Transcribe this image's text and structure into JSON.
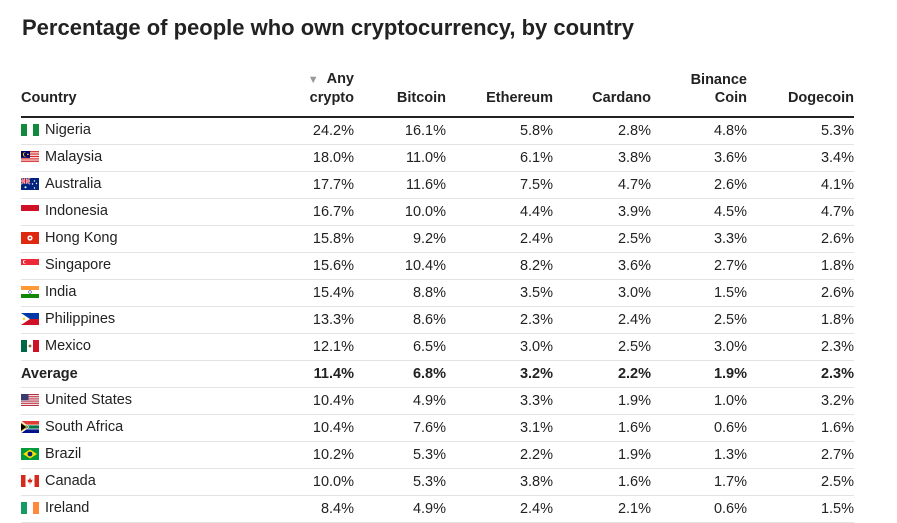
{
  "chart_data": {
    "type": "table",
    "title": "Percentage of people who own cryptocurrency, by country",
    "sort_indicator": "▼",
    "columns": [
      {
        "key": "country",
        "label": [
          "Country"
        ]
      },
      {
        "key": "any",
        "label": [
          "Any",
          "crypto"
        ]
      },
      {
        "key": "bitcoin",
        "label": [
          "Bitcoin"
        ]
      },
      {
        "key": "ethereum",
        "label": [
          "Ethereum"
        ]
      },
      {
        "key": "cardano",
        "label": [
          "Cardano"
        ]
      },
      {
        "key": "binance",
        "label": [
          "Binance",
          "Coin"
        ]
      },
      {
        "key": "dogecoin",
        "label": [
          "Dogecoin"
        ]
      }
    ],
    "rows": [
      {
        "country": "Nigeria",
        "flag": "nigeria-flag",
        "values": [
          "24.2%",
          "16.1%",
          "5.8%",
          "2.8%",
          "4.8%",
          "5.3%"
        ]
      },
      {
        "country": "Malaysia",
        "flag": "malaysia-flag",
        "values": [
          "18.0%",
          "11.0%",
          "6.1%",
          "3.8%",
          "3.6%",
          "3.4%"
        ]
      },
      {
        "country": "Australia",
        "flag": "australia-flag",
        "values": [
          "17.7%",
          "11.6%",
          "7.5%",
          "4.7%",
          "2.6%",
          "4.1%"
        ]
      },
      {
        "country": "Indonesia",
        "flag": "indonesia-flag",
        "values": [
          "16.7%",
          "10.0%",
          "4.4%",
          "3.9%",
          "4.5%",
          "4.7%"
        ]
      },
      {
        "country": "Hong Kong",
        "flag": "hong-kong-flag",
        "values": [
          "15.8%",
          "9.2%",
          "2.4%",
          "2.5%",
          "3.3%",
          "2.6%"
        ]
      },
      {
        "country": "Singapore",
        "flag": "singapore-flag",
        "values": [
          "15.6%",
          "10.4%",
          "8.2%",
          "3.6%",
          "2.7%",
          "1.8%"
        ]
      },
      {
        "country": "India",
        "flag": "india-flag",
        "values": [
          "15.4%",
          "8.8%",
          "3.5%",
          "3.0%",
          "1.5%",
          "2.6%"
        ]
      },
      {
        "country": "Philippines",
        "flag": "philippines-flag",
        "values": [
          "13.3%",
          "8.6%",
          "2.3%",
          "2.4%",
          "2.5%",
          "1.8%"
        ]
      },
      {
        "country": "Mexico",
        "flag": "mexico-flag",
        "values": [
          "12.1%",
          "6.5%",
          "3.0%",
          "2.5%",
          "3.0%",
          "2.3%"
        ]
      },
      {
        "country": "Average",
        "flag": "",
        "bold": true,
        "values": [
          "11.4%",
          "6.8%",
          "3.2%",
          "2.2%",
          "1.9%",
          "2.3%"
        ]
      },
      {
        "country": "United States",
        "flag": "united-states-flag",
        "values": [
          "10.4%",
          "4.9%",
          "3.3%",
          "1.9%",
          "1.0%",
          "3.2%"
        ]
      },
      {
        "country": "South Africa",
        "flag": "south-africa-flag",
        "values": [
          "10.4%",
          "7.6%",
          "3.1%",
          "1.6%",
          "0.6%",
          "1.6%"
        ]
      },
      {
        "country": "Brazil",
        "flag": "brazil-flag",
        "values": [
          "10.2%",
          "5.3%",
          "2.2%",
          "1.9%",
          "1.3%",
          "2.7%"
        ]
      },
      {
        "country": "Canada",
        "flag": "canada-flag",
        "values": [
          "10.0%",
          "5.3%",
          "3.8%",
          "1.6%",
          "1.7%",
          "2.5%"
        ]
      },
      {
        "country": "Ireland",
        "flag": "ireland-flag",
        "values": [
          "8.4%",
          "4.9%",
          "2.4%",
          "2.1%",
          "0.6%",
          "1.5%"
        ]
      }
    ]
  }
}
